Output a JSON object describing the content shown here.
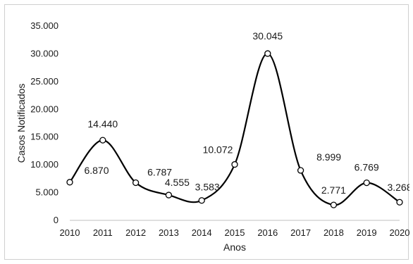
{
  "chart_data": {
    "type": "line",
    "xlabel": "Anos",
    "ylabel": "Casos Notificados",
    "ylim": [
      0,
      35000
    ],
    "yticks": [
      0,
      5000,
      10000,
      15000,
      20000,
      25000,
      30000,
      35000
    ],
    "ytick_labels": [
      "0",
      "5.000",
      "10.000",
      "15.000",
      "20.000",
      "25.000",
      "30.000",
      "35.000"
    ],
    "categories": [
      "2010",
      "2011",
      "2012",
      "2013",
      "2014",
      "2015",
      "2016",
      "2017",
      "2018",
      "2019",
      "2020"
    ],
    "values": [
      6870,
      14440,
      6787,
      4555,
      3583,
      10072,
      30045,
      8999,
      2771,
      6769,
      3268
    ],
    "data_labels": [
      "6.870",
      "14.440",
      "6.787",
      "4.555",
      "3.583",
      "10.072",
      "30.045",
      "8.999",
      "2.771",
      "6.769",
      "3.268"
    ],
    "smooth": true,
    "grid": false,
    "legend": "none",
    "line_color": "#000000",
    "marker_fill": "#ffffff",
    "axis_color": "#bfbfbf"
  }
}
